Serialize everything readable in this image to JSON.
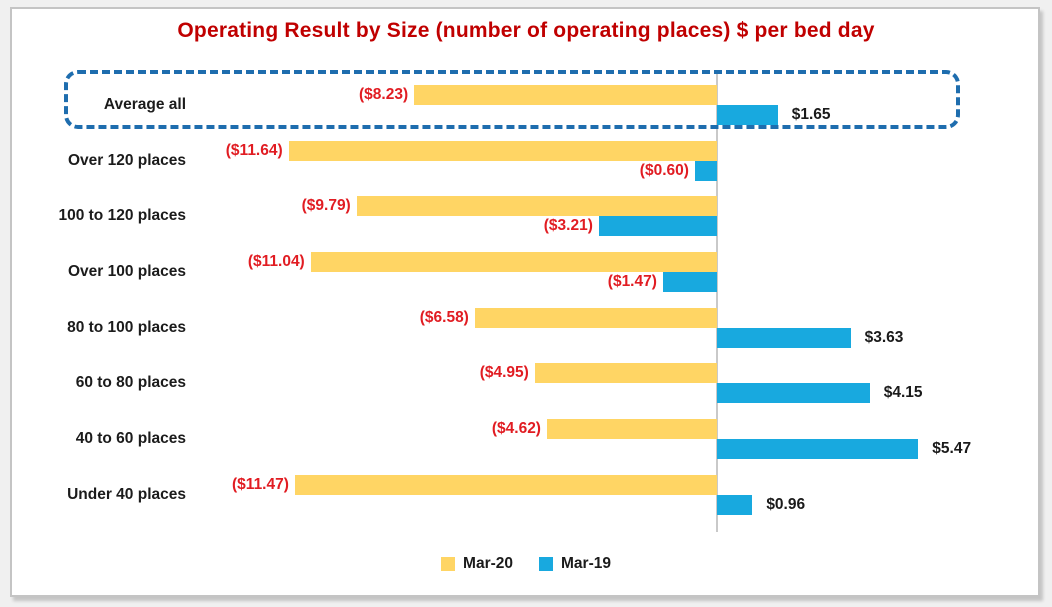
{
  "title": "Operating Result by Size (number of operating places) $ per bed day",
  "title_color": "#C00000",
  "chart_data": {
    "type": "bar",
    "orientation": "horizontal",
    "title": "Operating Result by Size (number of operating places) $ per bed day",
    "unit": "$ per bed day",
    "categories": [
      "Average all",
      "Over 120 places",
      "100 to 120 places",
      "Over 100 places",
      "80 to 100 places",
      "60 to 80 places",
      "40 to 60 places",
      "Under 40 places"
    ],
    "series": [
      {
        "name": "Mar-20",
        "color": "#FFD564",
        "values": [
          -8.23,
          -11.64,
          -9.79,
          -11.04,
          -6.58,
          -4.95,
          -4.62,
          -11.47
        ],
        "labels": [
          "($8.23)",
          "($11.64)",
          "($9.79)",
          "($11.04)",
          "($6.58)",
          "($4.95)",
          "($4.62)",
          "($11.47)"
        ]
      },
      {
        "name": "Mar-19",
        "color": "#18A9DF",
        "values": [
          1.65,
          -0.6,
          -3.21,
          -1.47,
          3.63,
          4.15,
          5.47,
          0.96
        ],
        "labels": [
          "$1.65",
          "($0.60)",
          "($3.21)",
          "($1.47)",
          "$3.63",
          "$4.15",
          "$5.47",
          "$0.96"
        ]
      }
    ],
    "value_label_colors": {
      "negative": "#E11C22",
      "positive": "#1A1A1A"
    },
    "highlight": {
      "category": "Average all",
      "style": "dashed",
      "border_color": "#1E6DAE"
    },
    "axis": {
      "zero_line": true,
      "zero_line_color": "#C9C9C9",
      "xlim": [
        -14.3,
        8.7
      ],
      "grid": false
    },
    "legend_position": "bottom"
  }
}
